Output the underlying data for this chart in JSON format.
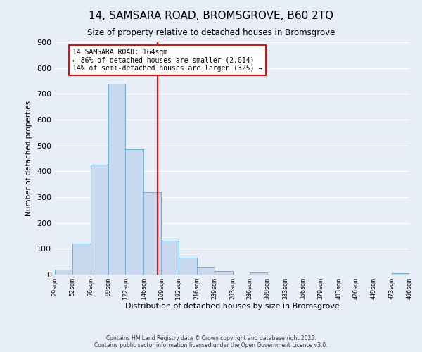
{
  "title": "14, SAMSARA ROAD, BROMSGROVE, B60 2TQ",
  "subtitle": "Size of property relative to detached houses in Bromsgrove",
  "bar_values": [
    20,
    120,
    425,
    740,
    485,
    320,
    130,
    65,
    30,
    15,
    0,
    8,
    0,
    0,
    0,
    0,
    0,
    0,
    0,
    5
  ],
  "bin_edges": [
    29,
    52,
    76,
    99,
    122,
    146,
    169,
    192,
    216,
    239,
    263,
    286,
    309,
    333,
    356,
    379,
    403,
    426,
    449,
    473,
    496
  ],
  "tick_labels": [
    "29sqm",
    "52sqm",
    "76sqm",
    "99sqm",
    "122sqm",
    "146sqm",
    "169sqm",
    "192sqm",
    "216sqm",
    "239sqm",
    "263sqm",
    "286sqm",
    "309sqm",
    "333sqm",
    "356sqm",
    "379sqm",
    "403sqm",
    "426sqm",
    "449sqm",
    "473sqm",
    "496sqm"
  ],
  "xlabel": "Distribution of detached houses by size in Bromsgrove",
  "ylabel": "Number of detached properties",
  "ylim": [
    0,
    900
  ],
  "yticks": [
    0,
    100,
    200,
    300,
    400,
    500,
    600,
    700,
    800,
    900
  ],
  "bar_color": "#c8d8ee",
  "bar_edge_color": "#6baed6",
  "vline_x": 164,
  "vline_color": "red",
  "annotation_line1": "14 SAMSARA ROAD: 164sqm",
  "annotation_line2": "← 86% of detached houses are smaller (2,014)",
  "annotation_line3": "14% of semi-detached houses are larger (325) →",
  "annotation_box_color": "white",
  "annotation_box_edge_color": "red",
  "background_color": "#e8eef8",
  "grid_color": "white",
  "footer_line1": "Contains HM Land Registry data © Crown copyright and database right 2025.",
  "footer_line2": "Contains public sector information licensed under the Open Government Licence v3.0."
}
